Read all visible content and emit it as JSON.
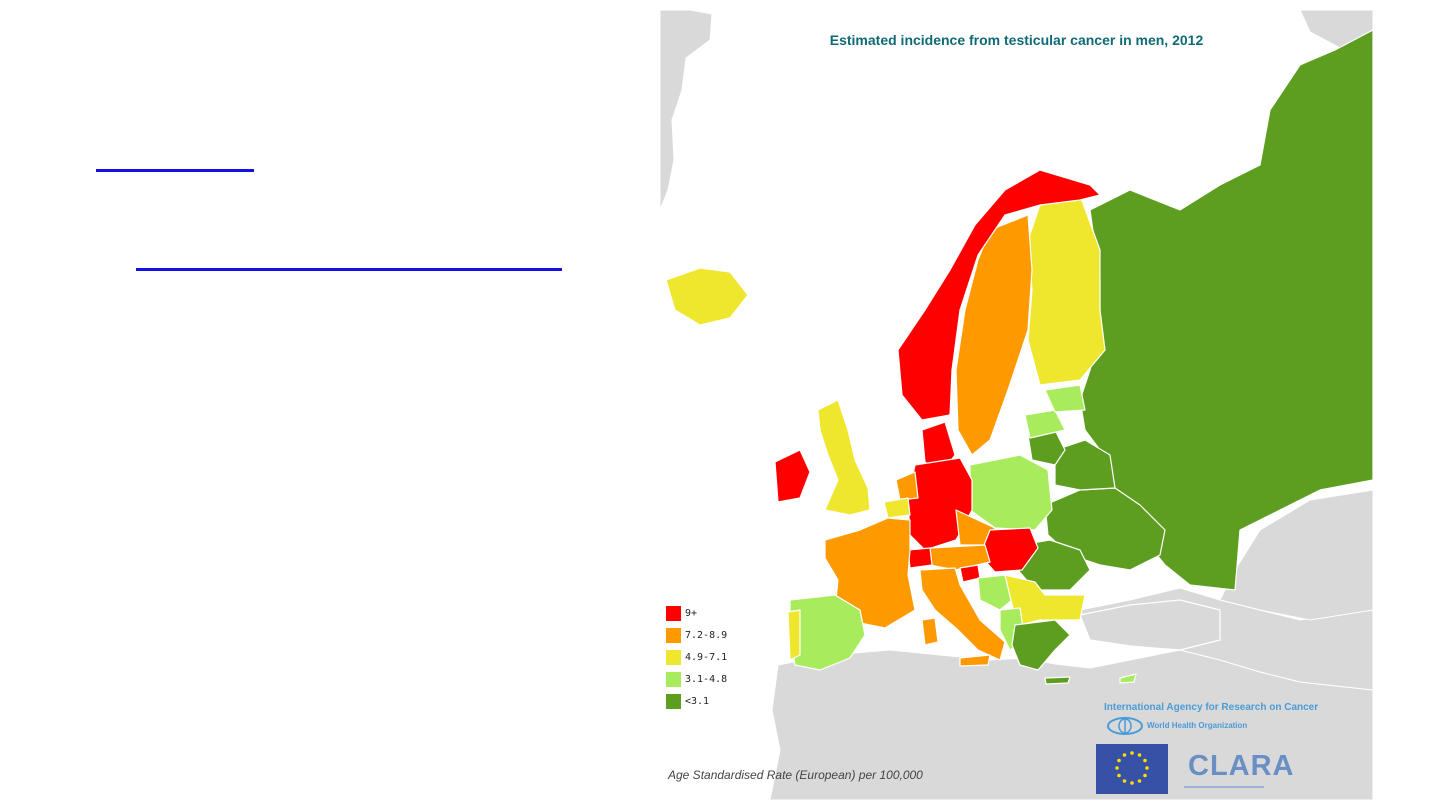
{
  "map": {
    "title": "Estimated incidence from testicular cancer in men, 2012",
    "footnote": "Age Standardised Rate (European) per 100,000",
    "organization": "International Agency for Research on Cancer",
    "who_label": "World Health Organization",
    "clara_label": "CLARA",
    "legend": [
      {
        "label": "9+",
        "color": "#ff0000"
      },
      {
        "label": "7.2-8.9",
        "color": "#ff9900"
      },
      {
        "label": "4.9-7.1",
        "color": "#eee72e"
      },
      {
        "label": "3.1-4.8",
        "color": "#a8ec5e"
      },
      {
        "label": "<3.1",
        "color": "#5d9e20"
      }
    ]
  },
  "colors": {
    "link": "#1212e6",
    "land_background": "#d9d9d9",
    "sea": "#ffffff",
    "title": "#0e6b76"
  }
}
